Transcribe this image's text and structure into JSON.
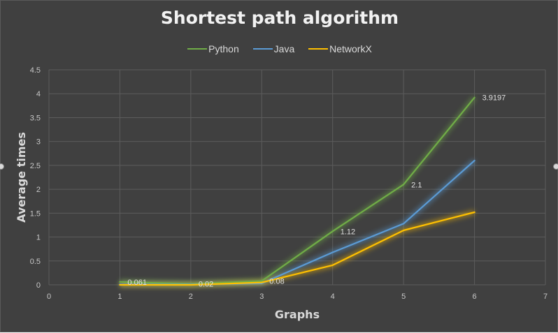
{
  "chart_data": {
    "type": "line",
    "title": "Shortest path algorithm",
    "xlabel": "Graphs",
    "ylabel": "Average times",
    "xlim": [
      0,
      7
    ],
    "ylim": [
      0,
      4.5
    ],
    "xticks": [
      "0",
      "1",
      "2",
      "3",
      "4",
      "5",
      "6",
      "7"
    ],
    "yticks": [
      "0",
      "0.5",
      "1",
      "1.5",
      "2",
      "2.5",
      "3",
      "3.5",
      "4",
      "4.5"
    ],
    "grid": true,
    "legend_position": "top",
    "x": [
      1,
      2,
      3,
      4,
      5,
      6
    ],
    "series": [
      {
        "name": "Python",
        "color": "#70ad47",
        "values": [
          0.061,
          0.02,
          0.08,
          1.12,
          2.1,
          3.9197
        ]
      },
      {
        "name": "Java",
        "color": "#5b9bd5",
        "values": [
          0.01,
          0.01,
          0.03,
          0.68,
          1.28,
          2.6
        ]
      },
      {
        "name": "NetworkX",
        "color": "#ffc000",
        "values": [
          0.0,
          0.0,
          0.05,
          0.41,
          1.14,
          1.52
        ]
      }
    ],
    "data_labels": [
      {
        "x": 1,
        "y": 0.061,
        "text": "0.061"
      },
      {
        "x": 2,
        "y": 0.02,
        "text": "0.02"
      },
      {
        "x": 3,
        "y": 0.08,
        "text": "0.08"
      },
      {
        "x": 4,
        "y": 1.12,
        "text": "1.12"
      },
      {
        "x": 5,
        "y": 2.1,
        "text": "2.1"
      },
      {
        "x": 6,
        "y": 3.9197,
        "text": "3.9197"
      }
    ]
  }
}
